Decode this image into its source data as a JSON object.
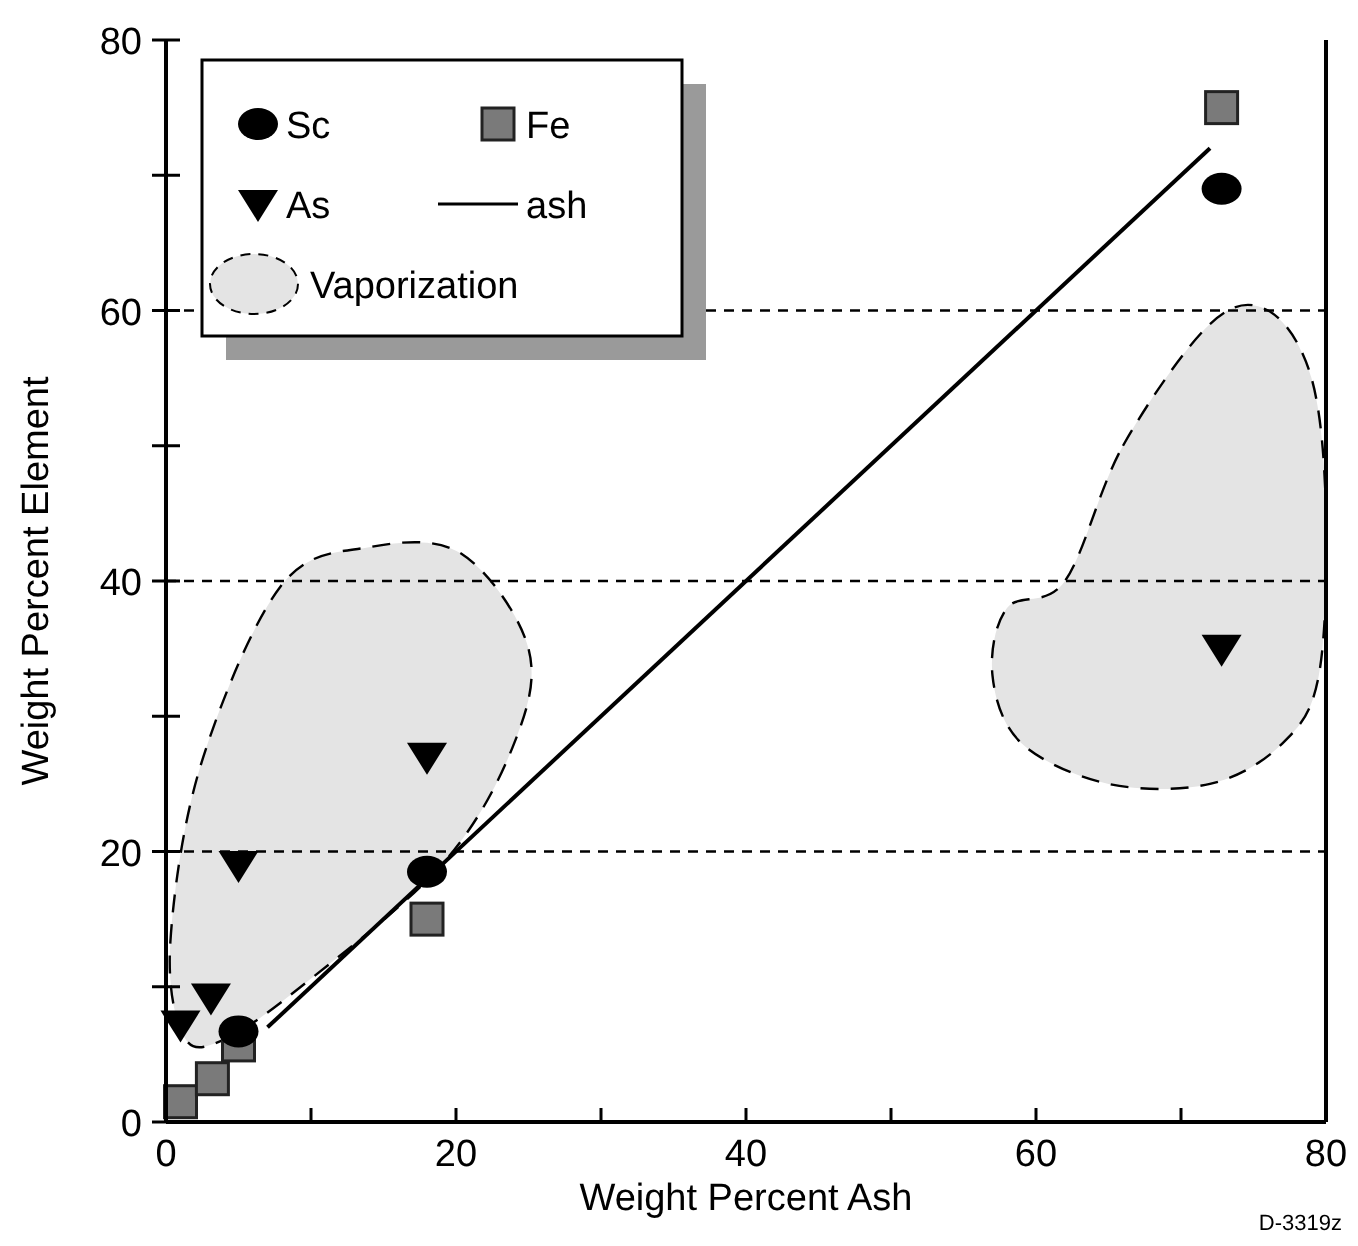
{
  "chart_data": {
    "type": "scatter",
    "xlabel": "Weight Percent Ash",
    "ylabel": "Weight Percent Element",
    "xlim": [
      0,
      80
    ],
    "ylim": [
      0,
      80
    ],
    "xticks": [
      0,
      {
        "value": 10,
        "label": null
      },
      20,
      {
        "value": 30,
        "label": null
      },
      40,
      {
        "value": 50,
        "label": null
      },
      60,
      {
        "value": 70,
        "label": null
      },
      80
    ],
    "yticks": [
      0,
      {
        "value": 10,
        "label": null
      },
      20,
      {
        "value": 30,
        "label": null
      },
      40,
      {
        "value": 50,
        "label": null
      },
      60,
      {
        "value": 70,
        "label": null
      },
      80
    ],
    "grid": "y",
    "legend": "top left",
    "annotations": [
      "D-3319z"
    ],
    "series": [
      {
        "name": "Sc",
        "marker": "circle",
        "color": "#000000",
        "x": [
          5,
          18,
          72.8
        ],
        "values": [
          6.7,
          18.5,
          69
        ]
      },
      {
        "name": "Fe",
        "marker": "square",
        "color": "#7a7a7a",
        "x": [
          1,
          3.2,
          5,
          18,
          72.8
        ],
        "values": [
          1.5,
          3.2,
          5.7,
          15,
          75
        ]
      },
      {
        "name": "As",
        "marker": "triangle",
        "color": "#000000",
        "x": [
          1,
          3.1,
          5,
          18,
          72.8
        ],
        "values": [
          7.2,
          9.2,
          19,
          27,
          35
        ]
      },
      {
        "name": "ash",
        "type": "line",
        "line_style": "solid",
        "color": "#000000",
        "x": [
          7,
          72
        ],
        "values": [
          7,
          72
        ]
      },
      {
        "name": "Vaporization",
        "type": "area",
        "line_style": "dashed",
        "color": "#e4e4e4",
        "x": [
          1.2,
          0.3,
          2.4,
          7.9,
          14,
          20.4,
          25,
          23.9,
          19,
          9.3,
          3.8
        ],
        "values": [
          6.4,
          13.3,
          26.4,
          39.6,
          42.5,
          42,
          35,
          27.7,
          19,
          10,
          6
        ]
      },
      {
        "type": "area",
        "line_style": "dashed",
        "color": "#e4e4e4",
        "x": [
          62,
          66,
          72,
          76,
          79,
          80,
          79.5,
          77,
          72,
          65,
          59,
          57,
          58
        ],
        "values": [
          40,
          50,
          59,
          60,
          55,
          45,
          33,
          28,
          25,
          25,
          28,
          33,
          38
        ]
      }
    ]
  }
}
